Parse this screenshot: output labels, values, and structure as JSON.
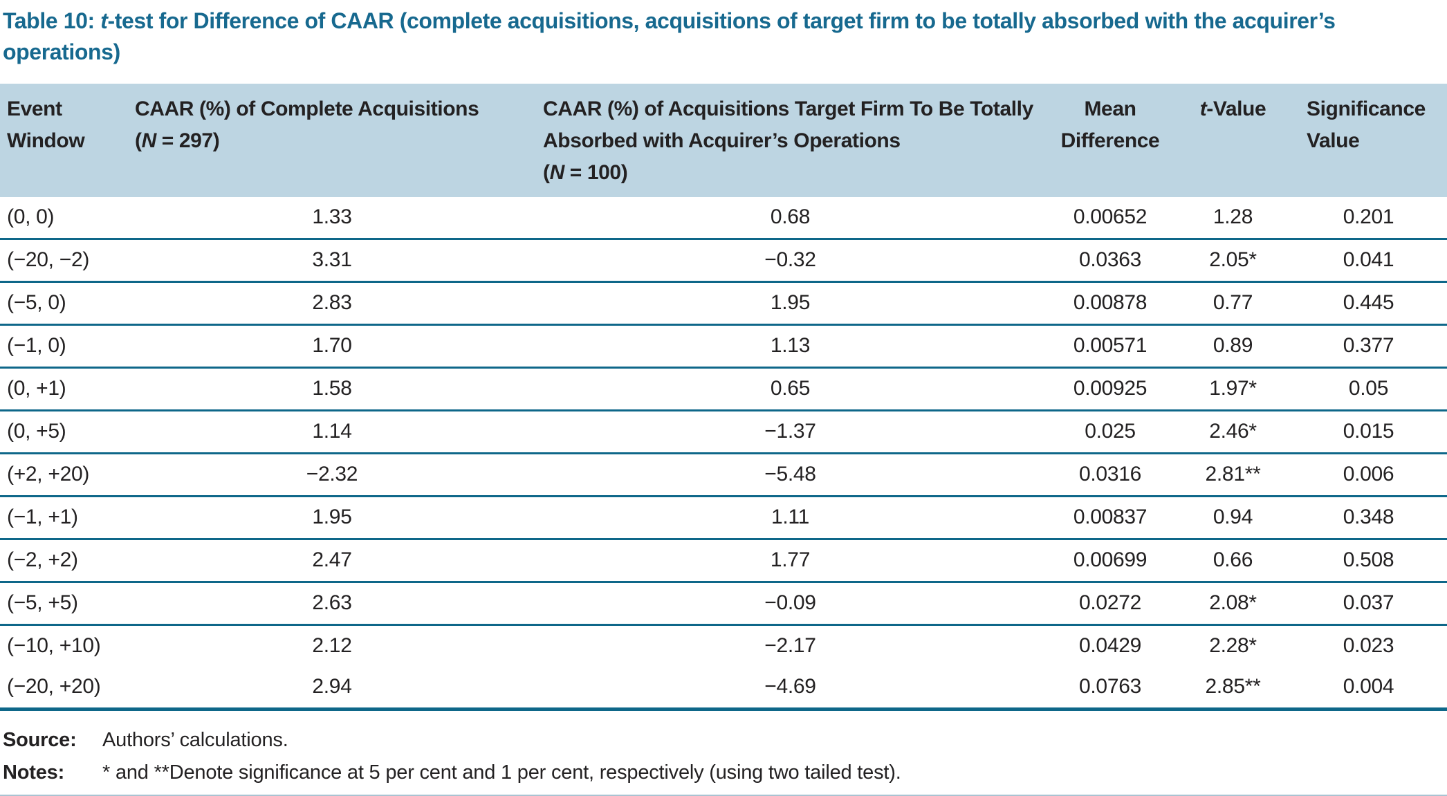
{
  "title": {
    "prefix": "Table 10: ",
    "t_italic": "t",
    "rest": "-test for Difference of CAAR (complete acquisitions, acquisitions of target firm to be totally absorbed with the acquirer’s",
    "line2": "operations)"
  },
  "table": {
    "header": {
      "col1_line1": "Event",
      "col1_line2": "Window",
      "col2_main": "CAAR (%) of Complete Acquisitions",
      "col2_n_prefix": "(",
      "col2_n": "N",
      "col2_n_suffix": " = 297)",
      "col3_main": "CAAR (%) of Acquisitions Target Firm To Be Totally Absorbed with Acquirer’s Operations",
      "col3_n_prefix": "(",
      "col3_n": "N",
      "col3_n_suffix": " = 100)",
      "col4_line1": "Mean",
      "col4_line2": "Difference",
      "col5_t": "t",
      "col5_rest": "-Value",
      "col6_line1": "Significance",
      "col6_line2": "Value"
    },
    "rows": [
      {
        "window": "(0, 0)",
        "caar_complete": "1.33",
        "caar_target": "0.68",
        "mean_difference": "0.00652",
        "t_value": "1.28",
        "significance": "0.201"
      },
      {
        "window": "(−20, −2)",
        "caar_complete": "3.31",
        "caar_target": "−0.32",
        "mean_difference": "0.0363",
        "t_value": "2.05*",
        "significance": "0.041"
      },
      {
        "window": "(−5, 0)",
        "caar_complete": "2.83",
        "caar_target": "1.95",
        "mean_difference": "0.00878",
        "t_value": "0.77",
        "significance": "0.445"
      },
      {
        "window": "(−1, 0)",
        "caar_complete": "1.70",
        "caar_target": "1.13",
        "mean_difference": "0.00571",
        "t_value": "0.89",
        "significance": "0.377"
      },
      {
        "window": "(0, +1)",
        "caar_complete": "1.58",
        "caar_target": "0.65",
        "mean_difference": "0.00925",
        "t_value": "1.97*",
        "significance": "0.05"
      },
      {
        "window": "(0, +5)",
        "caar_complete": "1.14",
        "caar_target": "−1.37",
        "mean_difference": "0.025",
        "t_value": "2.46*",
        "significance": "0.015"
      },
      {
        "window": "(+2, +20)",
        "caar_complete": "−2.32",
        "caar_target": "−5.48",
        "mean_difference": "0.0316",
        "t_value": "2.81**",
        "significance": "0.006"
      },
      {
        "window": "(−1, +1)",
        "caar_complete": "1.95",
        "caar_target": "1.11",
        "mean_difference": "0.00837",
        "t_value": "0.94",
        "significance": "0.348"
      },
      {
        "window": "(−2, +2)",
        "caar_complete": "2.47",
        "caar_target": "1.77",
        "mean_difference": "0.00699",
        "t_value": "0.66",
        "significance": "0.508"
      },
      {
        "window": "(−5, +5)",
        "caar_complete": "2.63",
        "caar_target": "−0.09",
        "mean_difference": "0.0272",
        "t_value": "2.08*",
        "significance": "0.037"
      },
      {
        "window": "(−10, +10)",
        "caar_complete": "2.12",
        "caar_target": "−2.17",
        "mean_difference": "0.0429",
        "t_value": "2.28*",
        "significance": "0.023"
      },
      {
        "window": "(−20, +20)",
        "caar_complete": "2.94",
        "caar_target": "−4.69",
        "mean_difference": "0.0763",
        "t_value": "2.85**",
        "significance": "0.004"
      }
    ]
  },
  "footer": {
    "source_label": "Source:",
    "source_text": "Authors’ calculations.",
    "notes_label": "Notes:",
    "notes_text": "* and **Denote significance at 5 per cent and 1 per cent, respectively (using two tailed test)."
  },
  "colors": {
    "title_teal": "#17698F",
    "rule_teal": "#0E6789",
    "header_background": "#BDD5E2",
    "body_text": "#232122"
  }
}
